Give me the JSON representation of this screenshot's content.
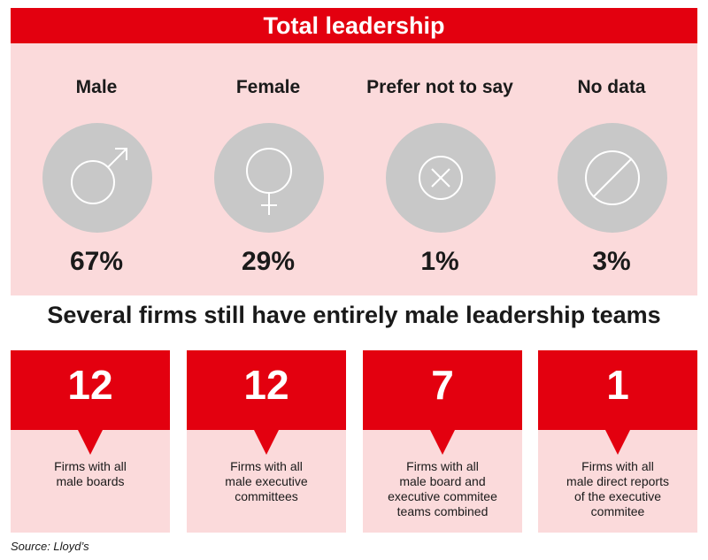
{
  "header": {
    "title": "Total leadership"
  },
  "stats": [
    {
      "label": "Male",
      "value": "67%",
      "icon": "male-symbol-icon"
    },
    {
      "label": "Female",
      "value": "29%",
      "icon": "female-symbol-icon"
    },
    {
      "label": "Prefer not to say",
      "value": "1%",
      "icon": "x-circle-icon"
    },
    {
      "label": "No data",
      "value": "3%",
      "icon": "slash-circle-icon"
    }
  ],
  "subheading": "Several firms still have entirely male leadership teams",
  "cards": [
    {
      "number": "12",
      "text": "Firms with all\nmale boards"
    },
    {
      "number": "12",
      "text": "Firms with all\nmale executive\ncommittees"
    },
    {
      "number": "7",
      "text": "Firms with all\nmale board and\nexecutive commitee\nteams combined"
    },
    {
      "number": "1",
      "text": "Firms with all\nmale direct reports\nof the executive\ncommitee"
    }
  ],
  "source": "Source: Lloyd’s",
  "colors": {
    "accent": "#e3000f",
    "panel": "#fbdadb",
    "circle": "#c8c8c8"
  }
}
